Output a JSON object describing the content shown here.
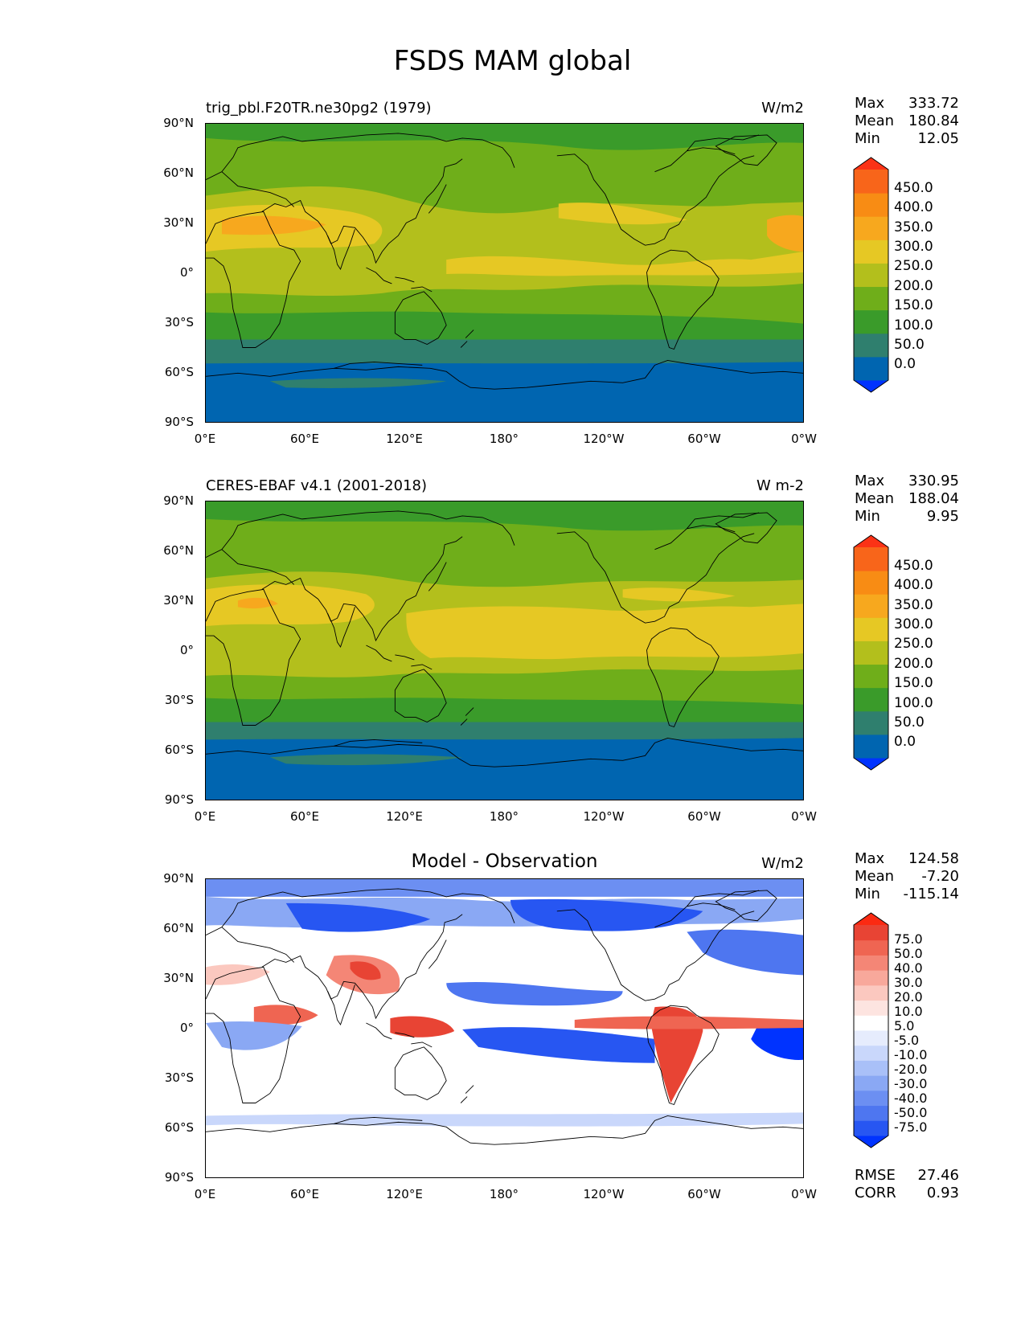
{
  "title": "FSDS MAM global",
  "lat_labels": [
    "90°N",
    "60°N",
    "30°N",
    "0°",
    "30°S",
    "60°S",
    "90°S"
  ],
  "lon_labels": [
    "0°E",
    "60°E",
    "120°E",
    "180°",
    "120°W",
    "60°W",
    "0°W"
  ],
  "colors": {
    "test_ref_levels": [
      "#0033ff",
      "#0065b0",
      "#2f7f6e",
      "#3a9b2a",
      "#6fae1a",
      "#b3bf1c",
      "#e6c824",
      "#f7a81e",
      "#f88c14",
      "#f8651a",
      "#fb3216"
    ],
    "diff_levels": [
      "#0033ff",
      "#2756f2",
      "#4e76f0",
      "#6c8ff2",
      "#8aa8f4",
      "#a9c0f8",
      "#c9d7fb",
      "#e6ecfd",
      "#ffffff",
      "#fde4e0",
      "#fbc8bf",
      "#f8a89b",
      "#f48676",
      "#ef6552",
      "#e84434",
      "#fb2a12"
    ]
  },
  "panels": [
    {
      "title": "trig_pbl.F20TR.ne30pg2 (1979)",
      "units": "W/m2",
      "stats": [
        {
          "label": "Max",
          "value": "333.72"
        },
        {
          "label": "Mean",
          "value": "180.84"
        },
        {
          "label": "Min",
          "value": "12.05"
        }
      ],
      "colorbar_labels": [
        "450.0",
        "400.0",
        "350.0",
        "300.0",
        "250.0",
        "200.0",
        "150.0",
        "100.0",
        "50.0",
        "0.0"
      ]
    },
    {
      "title": "CERES-EBAF v4.1 (2001-2018)",
      "units": "W m-2",
      "stats": [
        {
          "label": "Max",
          "value": "330.95"
        },
        {
          "label": "Mean",
          "value": "188.04"
        },
        {
          "label": "Min",
          "value": "9.95"
        }
      ],
      "colorbar_labels": [
        "450.0",
        "400.0",
        "350.0",
        "300.0",
        "250.0",
        "200.0",
        "150.0",
        "100.0",
        "50.0",
        "0.0"
      ]
    },
    {
      "title": "Model - Observation",
      "units": "W/m2",
      "stats": [
        {
          "label": "Max",
          "value": "124.58"
        },
        {
          "label": "Mean",
          "value": "-7.20"
        },
        {
          "label": "Min",
          "value": "-115.14"
        }
      ],
      "colorbar_labels": [
        "75.0",
        "50.0",
        "40.0",
        "30.0",
        "20.0",
        "10.0",
        "5.0",
        "-5.0",
        "-10.0",
        "-20.0",
        "-30.0",
        "-40.0",
        "-50.0",
        "-75.0"
      ],
      "metrics": [
        {
          "label": "RMSE",
          "value": "27.46"
        },
        {
          "label": "CORR",
          "value": "0.93"
        }
      ]
    }
  ]
}
